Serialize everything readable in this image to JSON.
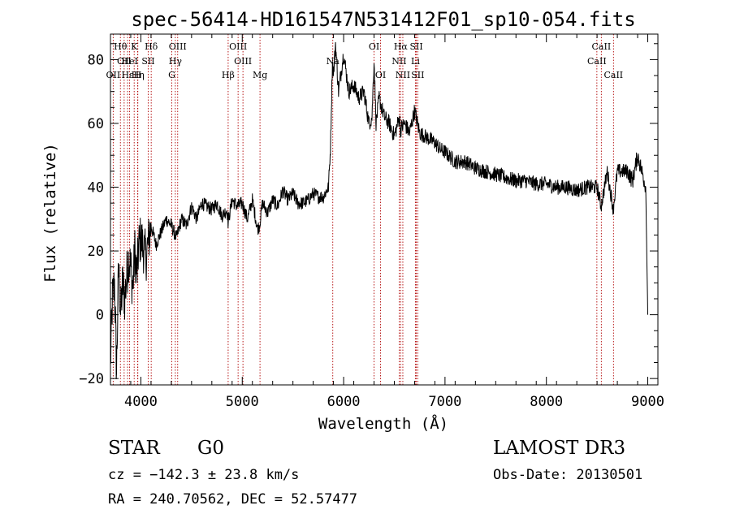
{
  "chart_data": {
    "type": "line",
    "title": "spec-56414-HD161547N531412F01_sp10-054.fits",
    "xlabel": "Wavelength (Å)",
    "ylabel": "Flux (relative)",
    "xlim": [
      3700,
      9100
    ],
    "ylim": [
      -22,
      88
    ],
    "x_ticks": [
      4000,
      5000,
      6000,
      7000,
      8000,
      9000
    ],
    "x_tick_labels": [
      "4000",
      "5000",
      "6000",
      "7000",
      "8000",
      "9000"
    ],
    "y_ticks": [
      -20,
      0,
      20,
      40,
      60,
      80
    ],
    "y_tick_labels": [
      "−20",
      "0",
      "20",
      "40",
      "60",
      "80"
    ],
    "grid": false,
    "series": [
      {
        "color": "#000000",
        "x": [
          3700,
          3720,
          3740,
          3760,
          3780,
          3800,
          3820,
          3840,
          3860,
          3880,
          3900,
          3920,
          3940,
          3960,
          3980,
          4000,
          4050,
          4100,
          4150,
          4200,
          4250,
          4300,
          4350,
          4400,
          4450,
          4500,
          4550,
          4600,
          4650,
          4700,
          4750,
          4800,
          4850,
          4860,
          4900,
          4950,
          5000,
          5050,
          5100,
          5150,
          5170,
          5200,
          5250,
          5300,
          5350,
          5400,
          5450,
          5500,
          5550,
          5600,
          5650,
          5700,
          5750,
          5800,
          5850,
          5870,
          5890,
          5900,
          5920,
          5950,
          6000,
          6050,
          6100,
          6150,
          6200,
          6250,
          6280,
          6300,
          6320,
          6350,
          6400,
          6450,
          6500,
          6550,
          6560,
          6600,
          6650,
          6700,
          6750,
          6800,
          6850,
          6900,
          6950,
          7000,
          7100,
          7200,
          7300,
          7400,
          7500,
          7600,
          7700,
          7800,
          7900,
          8000,
          8100,
          8200,
          8300,
          8400,
          8500,
          8540,
          8600,
          8660,
          8700,
          8800,
          8850,
          8900,
          8950,
          8980,
          9000
        ],
        "y": [
          -15,
          5,
          10,
          -18,
          15,
          0,
          10,
          5,
          12,
          18,
          15,
          8,
          20,
          12,
          22,
          24,
          18,
          28,
          22,
          26,
          30,
          28,
          24,
          30,
          28,
          34,
          30,
          35,
          34,
          33,
          35,
          31,
          33,
          29,
          36,
          34,
          35,
          30,
          36,
          27,
          28,
          35,
          32,
          36,
          34,
          39,
          36,
          38,
          35,
          35,
          36,
          38,
          37,
          37,
          40,
          52,
          80,
          75,
          85,
          70,
          82,
          70,
          72,
          68,
          70,
          60,
          62,
          80,
          60,
          68,
          62,
          60,
          56,
          62,
          58,
          60,
          57,
          64,
          57,
          56,
          55,
          54,
          52,
          51,
          48,
          48,
          46,
          45,
          44,
          43,
          42,
          42,
          41,
          41,
          40,
          40,
          39,
          40,
          40,
          34,
          45,
          33,
          45,
          45,
          42,
          50,
          44,
          40,
          0
        ]
      }
    ],
    "line_labels": [
      {
        "wl": 3798,
        "row": 0,
        "text": "Hθ"
      },
      {
        "wl": 3835,
        "row": 1,
        "text": "OII"
      },
      {
        "wl": 3727,
        "row": 2,
        "text": "OII"
      },
      {
        "wl": 3869,
        "row": 2,
        "text": "Hε"
      },
      {
        "wl": 3934,
        "row": 0,
        "text": "K"
      },
      {
        "wl": 3889,
        "row": 1,
        "text": "HeI"
      },
      {
        "wl": 3970,
        "row": 2,
        "text": "Hη"
      },
      {
        "wl": 4072,
        "row": 1,
        "text": "SII"
      },
      {
        "wl": 3968,
        "row": 2,
        "text": "H"
      },
      {
        "wl": 4102,
        "row": 0,
        "text": "Hδ"
      },
      {
        "wl": 4363,
        "row": 0,
        "text": "OIII"
      },
      {
        "wl": 4340,
        "row": 1,
        "text": "Hγ"
      },
      {
        "wl": 4305,
        "row": 2,
        "text": "G"
      },
      {
        "wl": 4959,
        "row": 0,
        "text": "OIII"
      },
      {
        "wl": 5007,
        "row": 1,
        "text": "OIII"
      },
      {
        "wl": 4861,
        "row": 2,
        "text": "Hβ"
      },
      {
        "wl": 5175,
        "row": 2,
        "text": "Mg"
      },
      {
        "wl": 5893,
        "row": 1,
        "text": "Na"
      },
      {
        "wl": 6300,
        "row": 0,
        "text": "OI"
      },
      {
        "wl": 6364,
        "row": 2,
        "text": "OI"
      },
      {
        "wl": 6563,
        "row": 0,
        "text": "Hα"
      },
      {
        "wl": 6717,
        "row": 0,
        "text": "SII"
      },
      {
        "wl": 6548,
        "row": 1,
        "text": "NII"
      },
      {
        "wl": 6708,
        "row": 1,
        "text": "Li"
      },
      {
        "wl": 6584,
        "row": 2,
        "text": "NII"
      },
      {
        "wl": 6731,
        "row": 2,
        "text": "SII"
      },
      {
        "wl": 8542,
        "row": 0,
        "text": "CaII"
      },
      {
        "wl": 8498,
        "row": 1,
        "text": "CaII"
      },
      {
        "wl": 8662,
        "row": 2,
        "text": "CaII"
      }
    ],
    "line_markers": [
      3727,
      3798,
      3835,
      3869,
      3889,
      3934,
      3968,
      3970,
      4072,
      4102,
      4305,
      4340,
      4363,
      4861,
      4959,
      5007,
      5175,
      5893,
      6300,
      6364,
      6548,
      6563,
      6584,
      6708,
      6717,
      6731,
      8498,
      8542,
      8662
    ]
  },
  "info": {
    "class_label": "STAR",
    "subclass_label": "G0",
    "survey_label": "LAMOST DR3",
    "cz_text": "cz = −142.3 ± 23.8 km/s",
    "obsdate_text": "Obs-Date: 20130501",
    "radec_text": "RA = 240.70562, DEC =  52.57477"
  }
}
